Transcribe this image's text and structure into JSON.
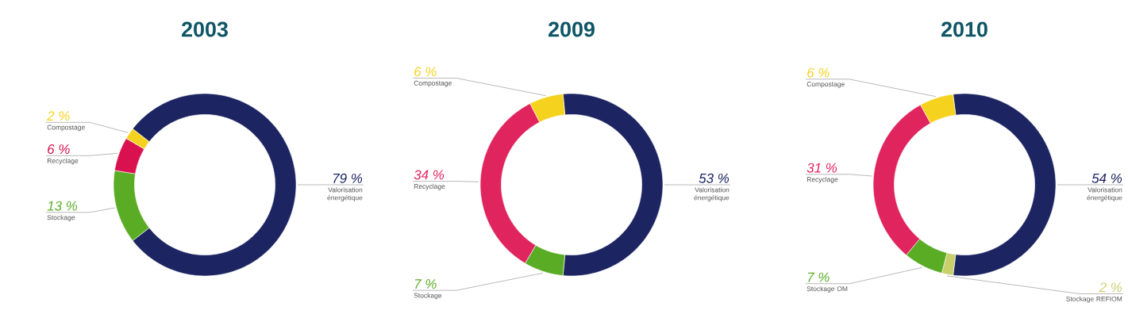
{
  "chart_data": [
    {
      "type": "donut",
      "title": "2003",
      "categories": [
        "Valorisation énergétique",
        "Stockage",
        "Recyclage",
        "Compostage"
      ],
      "values": [
        79,
        13,
        6,
        2
      ],
      "colors": [
        "#1c2461",
        "#5aac24",
        "#d9124f",
        "#f5d21e"
      ],
      "value_labels": [
        "79 %",
        "13 %",
        "6 %",
        "2 %"
      ]
    },
    {
      "type": "donut",
      "title": "2009",
      "categories": [
        "Valorisation énergétique",
        "Stockage",
        "Recyclage",
        "Compostage"
      ],
      "values": [
        53,
        7,
        34,
        6
      ],
      "colors": [
        "#1c2461",
        "#5aac24",
        "#e0245e",
        "#f5d21e"
      ],
      "value_labels": [
        "53 %",
        "7 %",
        "34 %",
        "6 %"
      ]
    },
    {
      "type": "donut",
      "title": "2010",
      "categories": [
        "Valorisation énergétique",
        "Stockage REFIOM",
        "Stockage OM",
        "Recyclage",
        "Compostage"
      ],
      "values": [
        54,
        2,
        7,
        31,
        6
      ],
      "colors": [
        "#1c2461",
        "#c9cf6a",
        "#5aac24",
        "#e0245e",
        "#f5d21e"
      ],
      "value_labels": [
        "54 %",
        "2 %",
        "7 %",
        "31 %",
        "6 %"
      ]
    }
  ]
}
